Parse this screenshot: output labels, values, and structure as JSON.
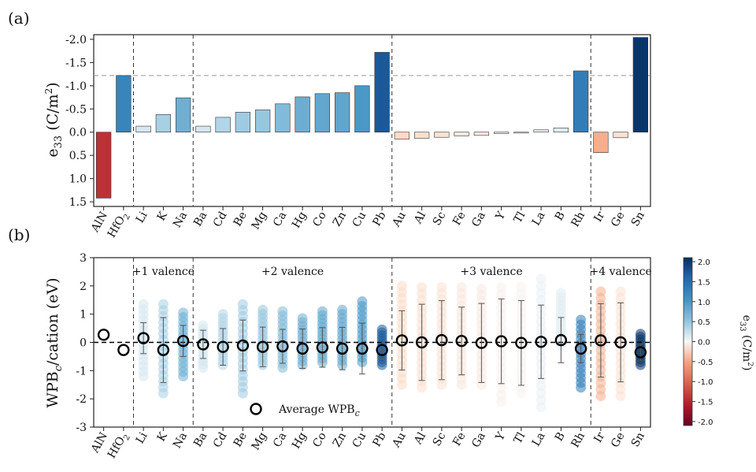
{
  "figure": {
    "panel_a_label": "(a)",
    "panel_b_label": "(b)",
    "legend_label": "Average WPB",
    "legend_sub": "c",
    "colorbar_label": "e",
    "colorbar_label_sub": "33",
    "colorbar_label_unit": " (C/m",
    "colorbar_label_sup": "2",
    "colorbar_label_end": ")"
  },
  "chart_data": [
    {
      "type": "bar",
      "panel": "(a)",
      "ylabel": "e33 (C/m2)",
      "ylim": [
        1.6,
        -2.1
      ],
      "yticks": [
        "-2.0",
        "-1.5",
        "-1.0",
        "-0.5",
        "0.0",
        "0.5",
        "1.0",
        "1.5"
      ],
      "ytick_values": [
        -2.0,
        -1.5,
        -1.0,
        -0.5,
        0.0,
        0.5,
        1.0,
        1.5
      ],
      "categories": [
        "AlN",
        "HfO2",
        "Li",
        "K",
        "Na",
        "Ba",
        "Cd",
        "Be",
        "Mg",
        "Ca",
        "Hg",
        "Co",
        "Zn",
        "Cu",
        "Pb",
        "Au",
        "Al",
        "Sc",
        "Fe",
        "Ga",
        "Y",
        "Tl",
        "La",
        "B",
        "Rh",
        "Ir",
        "Ge",
        "Sn"
      ],
      "values": [
        1.42,
        -1.22,
        -0.13,
        -0.38,
        -0.74,
        -0.13,
        -0.32,
        -0.43,
        -0.48,
        -0.61,
        -0.76,
        -0.83,
        -0.85,
        -1.0,
        -1.72,
        0.15,
        0.13,
        0.11,
        0.08,
        0.07,
        0.03,
        0.02,
        -0.05,
        -0.09,
        -1.32,
        0.44,
        0.12,
        -2.04
      ],
      "reference_line": -1.22,
      "group_separators_after": [
        "HfO2",
        "Na",
        "Pb",
        "Rh"
      ]
    },
    {
      "type": "scatter",
      "panel": "(b)",
      "ylabel": "WPBc/cation (eV)",
      "ylim": [
        -3,
        3
      ],
      "yticks": [
        "3",
        "2",
        "1",
        "0",
        "-1",
        "-2",
        "-3"
      ],
      "ytick_values": [
        3,
        2,
        1,
        0,
        -1,
        -2,
        -3
      ],
      "categories": [
        "AlN",
        "HfO2",
        "Li",
        "K",
        "Na",
        "Ba",
        "Cd",
        "Be",
        "Mg",
        "Ca",
        "Hg",
        "Co",
        "Zn",
        "Cu",
        "Pb",
        "Au",
        "Al",
        "Sc",
        "Fe",
        "Ga",
        "Y",
        "Tl",
        "La",
        "B",
        "Rh",
        "Ir",
        "Ge",
        "Sn"
      ],
      "average_wpbc": [
        0.27,
        -0.27,
        0.15,
        -0.27,
        0.05,
        -0.07,
        -0.16,
        -0.11,
        -0.16,
        -0.14,
        -0.22,
        -0.18,
        -0.22,
        -0.22,
        -0.27,
        0.07,
        0.0,
        0.08,
        0.05,
        -0.02,
        0.04,
        -0.02,
        0.02,
        0.08,
        -0.22,
        0.07,
        0.0,
        -0.35
      ],
      "std": [
        0,
        0,
        0.55,
        1.15,
        0.55,
        0.5,
        0.65,
        0.9,
        0.7,
        0.6,
        0.7,
        0.7,
        0.75,
        0.9,
        0.3,
        1.05,
        1.35,
        1.4,
        1.2,
        1.4,
        1.5,
        1.5,
        1.3,
        0.8,
        0.5,
        1.3,
        1.4,
        0.3
      ],
      "point_min": [
        0.27,
        -0.27,
        -1.2,
        -1.8,
        -1.2,
        -0.9,
        -0.8,
        -1.8,
        -0.8,
        -0.9,
        -0.8,
        -0.7,
        -0.8,
        -0.7,
        -0.8,
        -1.5,
        -1.6,
        -1.5,
        -1.5,
        -1.5,
        -2.1,
        -1.8,
        -2.3,
        -0.1,
        -1.6,
        -1.9,
        -1.9,
        -0.8
      ],
      "point_max": [
        0.27,
        -0.27,
        1.35,
        1.35,
        1.05,
        0.6,
        1.0,
        1.35,
        1.15,
        1.1,
        0.85,
        1.1,
        1.15,
        1.45,
        0.45,
        2.0,
        1.95,
        1.95,
        1.95,
        1.9,
        1.95,
        1.95,
        2.25,
        1.75,
        0.8,
        1.8,
        1.8,
        0.3
      ],
      "group_labels": [
        {
          "text": "+1 valence",
          "first": "Li",
          "last": "Na"
        },
        {
          "text": "+2 valence",
          "first": "Ba",
          "last": "Pb"
        },
        {
          "text": "+3 valence",
          "first": "Au",
          "last": "Rh"
        },
        {
          "text": "+4 valence",
          "first": "Ir",
          "last": "Sn"
        }
      ],
      "legend": [
        "Average WPBc"
      ],
      "colorbar": {
        "label": "e33 (C/m2)",
        "range": [
          -2.1,
          2.1
        ],
        "ticks": [
          "2.0",
          "1.5",
          "1.0",
          "0.5",
          "0.0",
          "-0.5",
          "-1.0",
          "-1.5",
          "-2.0"
        ],
        "tick_values": [
          2.0,
          1.5,
          1.0,
          0.5,
          0.0,
          -0.5,
          -1.0,
          -1.5,
          -2.0
        ]
      }
    }
  ]
}
